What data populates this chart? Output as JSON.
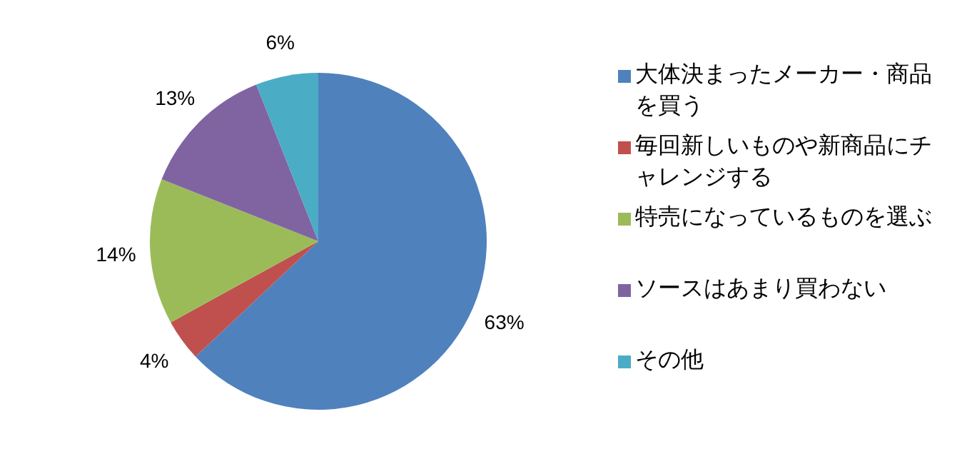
{
  "chart_data": {
    "type": "pie",
    "categories": [
      "大体決まったメーカー・商品を買う",
      "毎回新しいものや新商品にチャレンジする",
      "特売になっているものを選ぶ",
      "ソースはあまり買わない",
      "その他"
    ],
    "values": [
      63,
      4,
      14,
      13,
      6
    ],
    "value_labels": [
      "63%",
      "4%",
      "14%",
      "13%",
      "6%"
    ],
    "colors": [
      "#4f81bd",
      "#c0504d",
      "#9bbb59",
      "#8064a2",
      "#4bacc6"
    ],
    "legend": "right"
  }
}
